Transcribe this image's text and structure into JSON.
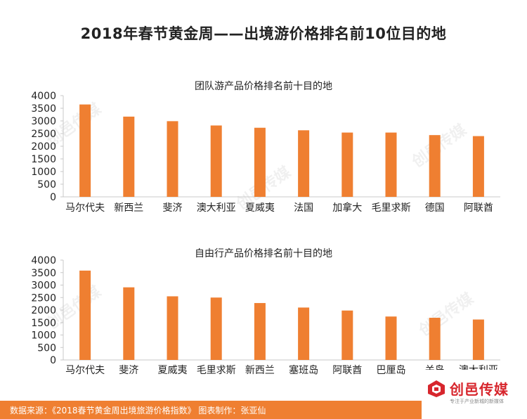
{
  "title": "2018年春节黄金周——出境游价格排名前10位目的地",
  "footer": {
    "source_text": "数据来源：《2018春节黄金周出境旅游价格指数》   图表制作：张亚仙"
  },
  "logo": {
    "name": "创邑传媒",
    "tagline": "专注于产业新城的新媒体"
  },
  "watermark_text": "创邑传媒",
  "colors": {
    "bar": "#ef7f31",
    "footer": "#ef7f31",
    "logo_red": "#d7262d"
  },
  "chart_data": [
    {
      "type": "bar",
      "title": "团队游产品价格排名前十目的地",
      "categories": [
        "马尔代夫",
        "新西兰",
        "斐济",
        "澳大利亚",
        "夏威夷",
        "法国",
        "加拿大",
        "毛里求斯",
        "德国",
        "阿联酋"
      ],
      "values": [
        3650,
        3170,
        2990,
        2820,
        2730,
        2630,
        2540,
        2540,
        2440,
        2400
      ],
      "xlabel": "",
      "ylabel": "",
      "ylim": [
        0,
        4000
      ],
      "yticks": [
        0,
        500,
        1000,
        1500,
        2000,
        2500,
        3000,
        3500,
        4000
      ],
      "grid": false,
      "legend": "none"
    },
    {
      "type": "bar",
      "title": "自由行产品价格排名前十目的地",
      "categories": [
        "马尔代夫",
        "斐济",
        "夏威夷",
        "毛里求斯",
        "新西兰",
        "塞班岛",
        "阿联酋",
        "巴厘岛",
        "关岛",
        "澳大利亚"
      ],
      "values": [
        3580,
        2910,
        2550,
        2500,
        2280,
        2100,
        1980,
        1740,
        1690,
        1620
      ],
      "xlabel": "",
      "ylabel": "",
      "ylim": [
        0,
        4000
      ],
      "yticks": [
        0,
        500,
        1000,
        1500,
        2000,
        2500,
        3000,
        3500,
        4000
      ],
      "grid": false,
      "legend": "none"
    }
  ]
}
